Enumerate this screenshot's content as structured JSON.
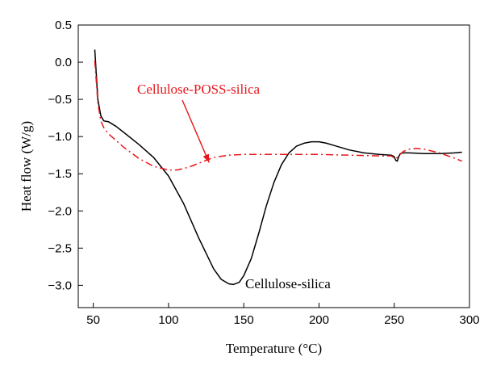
{
  "chart_data": {
    "type": "line",
    "xlabel": "Temperature (°C)",
    "ylabel": "Heat flow (W/g)",
    "xlim": [
      40,
      300
    ],
    "ylim": [
      -3.3,
      0.5
    ],
    "xticks": [
      50,
      100,
      150,
      200,
      250,
      300
    ],
    "yticks": [
      0.5,
      0.0,
      -0.5,
      -1.0,
      -1.5,
      -2.0,
      -2.5,
      -3.0
    ],
    "xtick_labels": [
      "50",
      "100",
      "150",
      "200",
      "250",
      "300"
    ],
    "ytick_labels": [
      "0.5",
      "0.0",
      "−0.5",
      "−1.0",
      "−1.5",
      "−2.0",
      "−2.5",
      "−3.0"
    ],
    "grid": false,
    "series": [
      {
        "name": "Cellulose-silica",
        "color": "#000000",
        "style": "solid",
        "x": [
          51,
          53,
          55,
          57,
          60,
          65,
          70,
          80,
          90,
          100,
          110,
          120,
          130,
          135,
          140,
          143,
          147,
          150,
          155,
          160,
          165,
          170,
          175,
          180,
          185,
          190,
          195,
          200,
          205,
          210,
          220,
          230,
          240,
          248,
          250,
          251,
          252,
          253,
          254,
          256,
          260,
          270,
          280,
          290,
          295
        ],
        "y": [
          0.17,
          -0.5,
          -0.72,
          -0.79,
          -0.8,
          -0.86,
          -0.94,
          -1.1,
          -1.28,
          -1.53,
          -1.9,
          -2.36,
          -2.78,
          -2.92,
          -2.98,
          -2.99,
          -2.96,
          -2.87,
          -2.64,
          -2.3,
          -1.93,
          -1.62,
          -1.38,
          -1.22,
          -1.13,
          -1.09,
          -1.07,
          -1.07,
          -1.09,
          -1.12,
          -1.18,
          -1.22,
          -1.24,
          -1.25,
          -1.27,
          -1.32,
          -1.33,
          -1.27,
          -1.23,
          -1.22,
          -1.22,
          -1.23,
          -1.23,
          -1.22,
          -1.21
        ]
      },
      {
        "name": "Cellulose-POSS-silica",
        "color": "#e8161a",
        "style": "dashdot",
        "x": [
          51,
          53,
          55,
          57,
          60,
          65,
          70,
          80,
          90,
          100,
          105,
          110,
          115,
          120,
          125,
          130,
          140,
          150,
          160,
          180,
          200,
          220,
          240,
          248,
          251,
          253,
          256,
          260,
          265,
          270,
          280,
          290,
          295
        ],
        "y": [
          0.02,
          -0.55,
          -0.79,
          -0.88,
          -0.96,
          -1.05,
          -1.14,
          -1.29,
          -1.4,
          -1.45,
          -1.45,
          -1.43,
          -1.4,
          -1.36,
          -1.32,
          -1.28,
          -1.25,
          -1.24,
          -1.24,
          -1.24,
          -1.24,
          -1.25,
          -1.26,
          -1.26,
          -1.3,
          -1.26,
          -1.2,
          -1.17,
          -1.16,
          -1.17,
          -1.22,
          -1.29,
          -1.33
        ]
      }
    ],
    "annotations": [
      {
        "text": "Cellulose-POSS-silica",
        "color": "#e8161a",
        "arrow_to": [
          127,
          -1.35
        ]
      },
      {
        "text": "Cellulose-silica",
        "color": "#000000"
      }
    ]
  }
}
